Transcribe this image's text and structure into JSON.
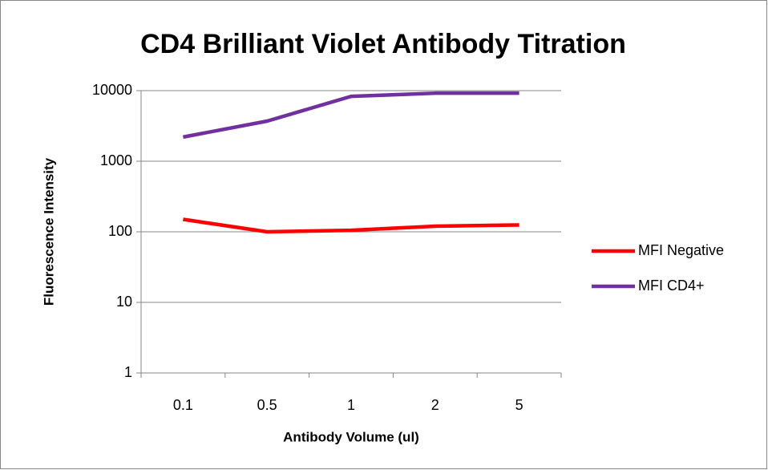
{
  "chart_data": {
    "type": "line",
    "title": "CD4 Brilliant Violet Antibody Titration",
    "x_label": "Antibody Volume (ul)",
    "y_label": "Fluorescence Intensity",
    "categories": [
      "0.1",
      "0.5",
      "1",
      "2",
      "5"
    ],
    "series": [
      {
        "name": "MFI Negative",
        "color": "#ff0000",
        "values": [
          150,
          100,
          105,
          120,
          125
        ]
      },
      {
        "name": "MFI CD4+",
        "color": "#7030a0",
        "values": [
          2200,
          3700,
          8300,
          9200,
          9200
        ]
      }
    ],
    "ylim": [
      1,
      10000
    ],
    "yticks": [
      1,
      10,
      100,
      1000,
      10000
    ],
    "log_scale": true,
    "grid": true,
    "legend": "right"
  }
}
